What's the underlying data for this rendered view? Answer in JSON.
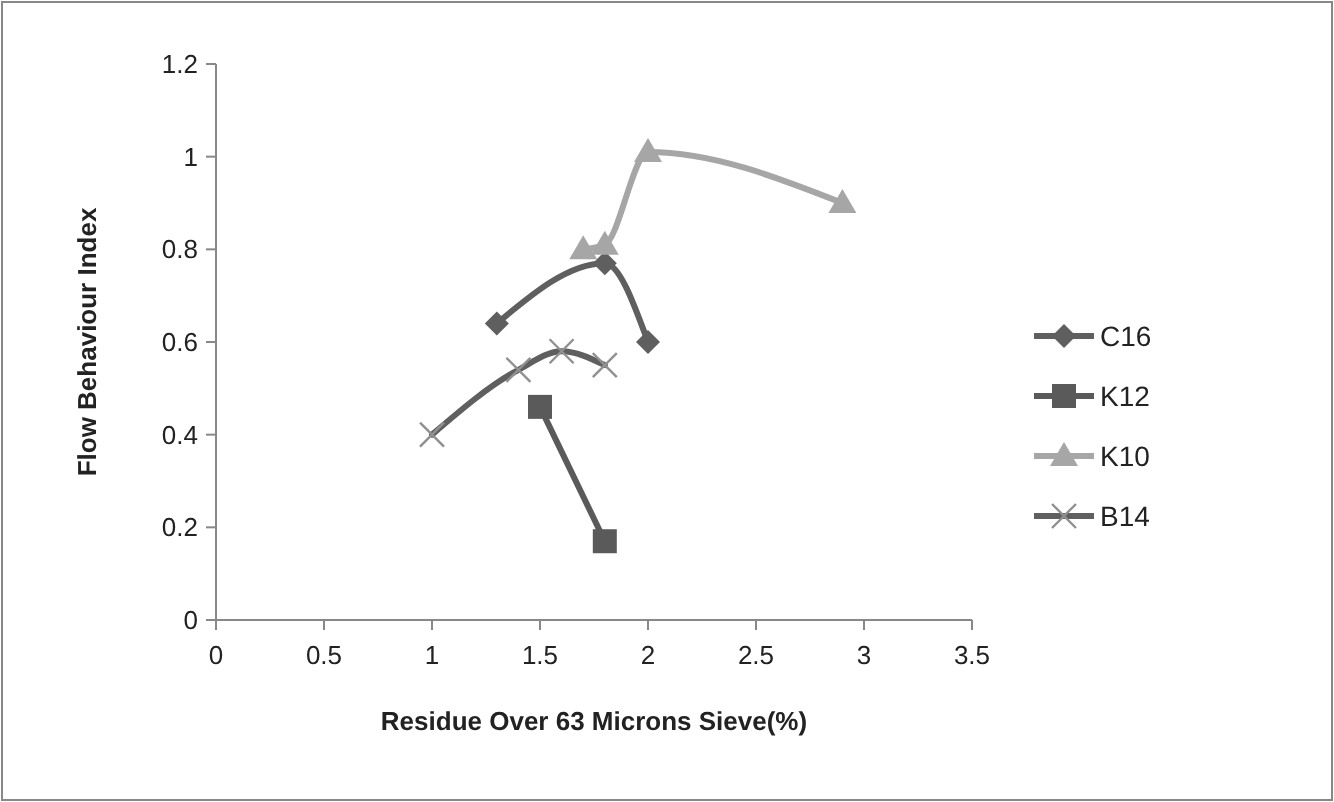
{
  "chart_data": {
    "type": "line",
    "xlabel": "Residue Over 63 Microns Sieve(%)",
    "ylabel": "Flow Behaviour Index",
    "xlim": [
      0,
      3.5
    ],
    "xticks": [
      0,
      0.5,
      1,
      1.5,
      2,
      2.5,
      3,
      3.5
    ],
    "ylim": [
      0,
      1.2
    ],
    "yticks": [
      0,
      0.2,
      0.4,
      0.6,
      0.8,
      1,
      1.2
    ],
    "grid": false,
    "legend": "right",
    "line_style": "solid",
    "series": [
      {
        "name": "C16",
        "color": "#5f5f5f",
        "marker": "diamond",
        "x": [
          1.3,
          1.8,
          2.0
        ],
        "values": [
          0.64,
          0.77,
          0.6
        ]
      },
      {
        "name": "K12",
        "color": "#5a5a5a",
        "marker": "square",
        "x": [
          1.5,
          1.8
        ],
        "values": [
          0.46,
          0.17
        ]
      },
      {
        "name": "K10",
        "color": "#a6a6a6",
        "marker": "triangle",
        "x": [
          1.7,
          1.8,
          2.0,
          2.9
        ],
        "values": [
          0.8,
          0.81,
          1.01,
          0.9
        ]
      },
      {
        "name": "B14",
        "color": "#5f5f5f",
        "marker": "cross",
        "x": [
          1.0,
          1.4,
          1.6,
          1.8
        ],
        "values": [
          0.4,
          0.54,
          0.58,
          0.55
        ]
      }
    ]
  }
}
